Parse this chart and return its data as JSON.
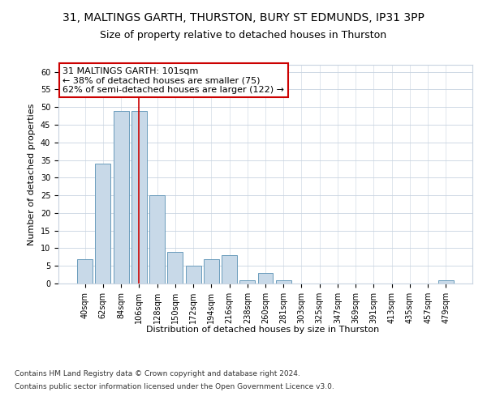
{
  "title_line1": "31, MALTINGS GARTH, THURSTON, BURY ST EDMUNDS, IP31 3PP",
  "title_line2": "Size of property relative to detached houses in Thurston",
  "xlabel": "Distribution of detached houses by size in Thurston",
  "ylabel": "Number of detached properties",
  "bar_labels": [
    "40sqm",
    "62sqm",
    "84sqm",
    "106sqm",
    "128sqm",
    "150sqm",
    "172sqm",
    "194sqm",
    "216sqm",
    "238sqm",
    "260sqm",
    "281sqm",
    "303sqm",
    "325sqm",
    "347sqm",
    "369sqm",
    "391sqm",
    "413sqm",
    "435sqm",
    "457sqm",
    "479sqm"
  ],
  "bar_values": [
    7,
    34,
    49,
    49,
    25,
    9,
    5,
    7,
    8,
    1,
    3,
    1,
    0,
    0,
    0,
    0,
    0,
    0,
    0,
    0,
    1
  ],
  "bar_color": "#c8d9e8",
  "bar_edgecolor": "#6a9cbc",
  "vline_x_index": 3,
  "vline_color": "#cc0000",
  "annotation_line1": "31 MALTINGS GARTH: 101sqm",
  "annotation_line2": "← 38% of detached houses are smaller (75)",
  "annotation_line3": "62% of semi-detached houses are larger (122) →",
  "ylim": [
    0,
    62
  ],
  "yticks": [
    0,
    5,
    10,
    15,
    20,
    25,
    30,
    35,
    40,
    45,
    50,
    55,
    60
  ],
  "background_color": "#ffffff",
  "grid_color": "#c8d3e0",
  "footer_line1": "Contains HM Land Registry data © Crown copyright and database right 2024.",
  "footer_line2": "Contains public sector information licensed under the Open Government Licence v3.0.",
  "title_fontsize": 10,
  "subtitle_fontsize": 9,
  "ylabel_fontsize": 8,
  "xlabel_fontsize": 8,
  "tick_fontsize": 7,
  "annotation_fontsize": 8,
  "footer_fontsize": 6.5
}
